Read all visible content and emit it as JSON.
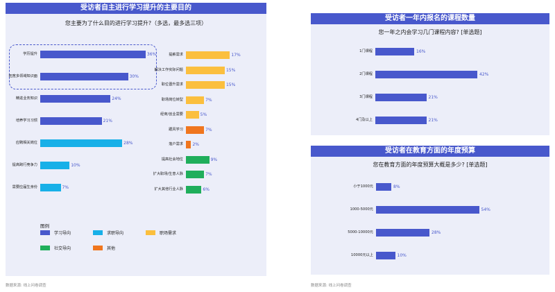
{
  "colors": {
    "title_bg": "#4858cc",
    "panel_bg": "#eceef9",
    "学习导向": "#4858cc",
    "求职导向": "#18b0e8",
    "职场需求": "#fbbf3e",
    "社交导向": "#1fae5b",
    "其他": "#f0761e"
  },
  "chart_data": [
    {
      "type": "bar",
      "orientation": "horizontal",
      "title": "受访者自主进行学习提升的主要目的",
      "subtitle": "您主要为了什么目的进行学习提升?（多选，最多选三项）",
      "xlim": [
        0,
        40
      ],
      "left_column": [
        {
          "label": "学历提升",
          "value": 36,
          "group": "学习导向"
        },
        {
          "label": "拓宽多领域知识面",
          "value": 30,
          "group": "学习导向"
        },
        {
          "label": "精进业务知识",
          "value": 24,
          "group": "学习导向"
        },
        {
          "label": "培养学习习惯",
          "value": 21,
          "group": "学习导向"
        },
        {
          "label": "应聘相关岗位",
          "value": 28,
          "group": "求职导向"
        },
        {
          "label": "提高跨行竞争力",
          "value": 10,
          "group": "求职导向"
        },
        {
          "label": "需要应届生身份",
          "value": 7,
          "group": "求职导向"
        }
      ],
      "right_column": [
        {
          "label": "提薪需求",
          "value": 17,
          "group": "职场需求"
        },
        {
          "label": "解决工作实际问题",
          "value": 15,
          "group": "职场需求"
        },
        {
          "label": "职位晋升需求",
          "value": 15,
          "group": "职场需求"
        },
        {
          "label": "职场岗位转型",
          "value": 7,
          "group": "职场需求"
        },
        {
          "label": "经商/创业需要",
          "value": 5,
          "group": "职场需求"
        },
        {
          "label": "跟风学习",
          "value": 7,
          "group": "其他"
        },
        {
          "label": "落户需求",
          "value": 2,
          "group": "其他"
        },
        {
          "label": "提高社会地位",
          "value": 9,
          "group": "社交导向"
        },
        {
          "label": "扩大职场/生意人脉",
          "value": 7,
          "group": "社交导向"
        },
        {
          "label": "扩大其他行业人脉",
          "value": 6,
          "group": "社交导向"
        }
      ],
      "legend_title": "图例",
      "legend": [
        "学习导向",
        "求职导向",
        "职场需求",
        "社交导向",
        "其他"
      ],
      "source": "数据来源: 线上问卷调查"
    },
    {
      "type": "bar",
      "orientation": "horizontal",
      "title": "受访者一年内报名的课程数量",
      "subtitle": "您一年之内会学习几门课程内容? [单选题]",
      "xlim": [
        0,
        50
      ],
      "categories": [
        "1门课程",
        "2门课程",
        "3门课程",
        "4门及以上"
      ],
      "values": [
        16,
        42,
        21,
        21
      ]
    },
    {
      "type": "bar",
      "orientation": "horizontal",
      "title": "受访者在教育方面的年度预算",
      "subtitle": "您在教育方面的年度预算大概是多少? [单选题]",
      "xlim": [
        0,
        65
      ],
      "categories": [
        "小于1000元",
        "1000-5000元",
        "5000-10000元",
        "10000元以上"
      ],
      "values": [
        8,
        54,
        28,
        10
      ],
      "source": "数据来源: 线上问卷调查"
    }
  ]
}
